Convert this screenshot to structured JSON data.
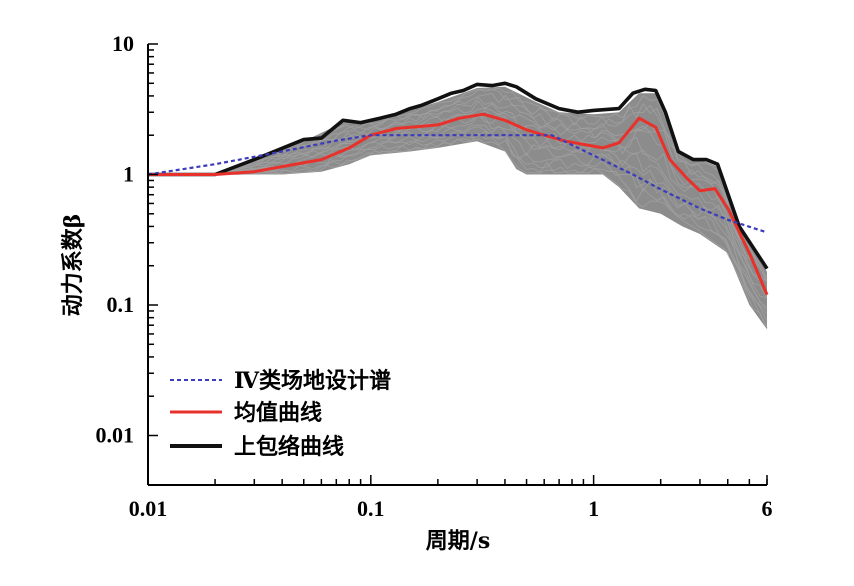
{
  "chart_data": {
    "type": "line",
    "title": "",
    "xlabel": "周期/s",
    "ylabel": "动力系数β",
    "xscale": "log",
    "yscale": "log",
    "xlim": [
      0.01,
      6
    ],
    "ylim": [
      0.005,
      10
    ],
    "xticks": [
      {
        "value": 0.01,
        "label": "0.01"
      },
      {
        "value": 0.1,
        "label": "0.1"
      },
      {
        "value": 1,
        "label": "1"
      },
      {
        "value": 6,
        "label": "6"
      }
    ],
    "yticks": [
      {
        "value": 0.01,
        "label": "0.01"
      },
      {
        "value": 0.1,
        "label": "0.1"
      },
      {
        "value": 1,
        "label": "1"
      },
      {
        "value": 10,
        "label": "10"
      }
    ],
    "grid": false,
    "legend_position": "bottom-left",
    "series": [
      {
        "name": "Ⅳ类场地设计谱",
        "color": "#3b3bbd",
        "style": "dashed",
        "points": [
          [
            0.01,
            1.0
          ],
          [
            0.02,
            1.2
          ],
          [
            0.04,
            1.5
          ],
          [
            0.07,
            1.82
          ],
          [
            0.1,
            2.0
          ],
          [
            0.65,
            2.0
          ],
          [
            1.0,
            1.4
          ],
          [
            1.5,
            1.0
          ],
          [
            2.0,
            0.77
          ],
          [
            3.0,
            0.55
          ],
          [
            4.0,
            0.45
          ],
          [
            6.0,
            0.36
          ]
        ]
      },
      {
        "name": "均值曲线",
        "color": "#e8312b",
        "style": "solid",
        "points": [
          [
            0.01,
            1.0
          ],
          [
            0.02,
            1.0
          ],
          [
            0.03,
            1.05
          ],
          [
            0.04,
            1.15
          ],
          [
            0.06,
            1.3
          ],
          [
            0.08,
            1.6
          ],
          [
            0.1,
            2.0
          ],
          [
            0.13,
            2.25
          ],
          [
            0.2,
            2.4
          ],
          [
            0.25,
            2.7
          ],
          [
            0.32,
            2.9
          ],
          [
            0.4,
            2.6
          ],
          [
            0.5,
            2.2
          ],
          [
            0.6,
            2.0
          ],
          [
            0.75,
            1.8
          ],
          [
            0.9,
            1.7
          ],
          [
            1.1,
            1.6
          ],
          [
            1.3,
            1.75
          ],
          [
            1.6,
            2.7
          ],
          [
            1.9,
            2.3
          ],
          [
            2.2,
            1.3
          ],
          [
            2.6,
            0.95
          ],
          [
            3.0,
            0.75
          ],
          [
            3.5,
            0.78
          ],
          [
            4.0,
            0.55
          ],
          [
            5.0,
            0.25
          ],
          [
            6.0,
            0.12
          ]
        ]
      },
      {
        "name": "上包络曲线",
        "color": "#111111",
        "style": "solid",
        "points": [
          [
            0.01,
            1.0
          ],
          [
            0.02,
            1.0
          ],
          [
            0.03,
            1.3
          ],
          [
            0.05,
            1.85
          ],
          [
            0.06,
            1.9
          ],
          [
            0.075,
            2.6
          ],
          [
            0.09,
            2.5
          ],
          [
            0.11,
            2.7
          ],
          [
            0.13,
            2.9
          ],
          [
            0.15,
            3.2
          ],
          [
            0.17,
            3.4
          ],
          [
            0.2,
            3.8
          ],
          [
            0.23,
            4.2
          ],
          [
            0.26,
            4.4
          ],
          [
            0.3,
            4.9
          ],
          [
            0.35,
            4.8
          ],
          [
            0.4,
            5.0
          ],
          [
            0.45,
            4.7
          ],
          [
            0.55,
            3.8
          ],
          [
            0.7,
            3.2
          ],
          [
            0.85,
            3.0
          ],
          [
            1.0,
            3.1
          ],
          [
            1.3,
            3.2
          ],
          [
            1.5,
            4.2
          ],
          [
            1.7,
            4.5
          ],
          [
            1.9,
            4.4
          ],
          [
            2.1,
            3.0
          ],
          [
            2.4,
            1.5
          ],
          [
            2.8,
            1.3
          ],
          [
            3.2,
            1.3
          ],
          [
            3.6,
            1.2
          ],
          [
            4.5,
            0.4
          ],
          [
            6.0,
            0.19
          ]
        ]
      }
    ],
    "band": {
      "color": "#8c8c8c",
      "description_color": "#a0a0a0",
      "upper": [
        [
          0.01,
          1.0
        ],
        [
          0.02,
          1.0
        ],
        [
          0.03,
          1.3
        ],
        [
          0.05,
          1.8
        ],
        [
          0.075,
          2.5
        ],
        [
          0.1,
          2.6
        ],
        [
          0.15,
          3.1
        ],
        [
          0.2,
          3.6
        ],
        [
          0.3,
          4.6
        ],
        [
          0.4,
          4.7
        ],
        [
          0.55,
          3.6
        ],
        [
          0.7,
          3.0
        ],
        [
          1.0,
          2.9
        ],
        [
          1.3,
          3.0
        ],
        [
          1.6,
          4.2
        ],
        [
          1.9,
          4.2
        ],
        [
          2.1,
          2.9
        ],
        [
          2.4,
          1.45
        ],
        [
          3.2,
          1.25
        ],
        [
          3.6,
          1.15
        ],
        [
          4.5,
          0.38
        ],
        [
          6.0,
          0.18
        ]
      ],
      "lower": [
        [
          0.01,
          1.0
        ],
        [
          0.02,
          1.0
        ],
        [
          0.04,
          1.0
        ],
        [
          0.06,
          1.05
        ],
        [
          0.08,
          1.2
        ],
        [
          0.1,
          1.4
        ],
        [
          0.15,
          1.5
        ],
        [
          0.2,
          1.6
        ],
        [
          0.3,
          1.8
        ],
        [
          0.4,
          1.5
        ],
        [
          0.45,
          1.1
        ],
        [
          0.5,
          1.0
        ],
        [
          0.7,
          1.0
        ],
        [
          0.9,
          1.0
        ],
        [
          1.1,
          1.0
        ],
        [
          1.3,
          0.8
        ],
        [
          1.6,
          0.55
        ],
        [
          2.0,
          0.5
        ],
        [
          2.5,
          0.4
        ],
        [
          3.0,
          0.35
        ],
        [
          4.0,
          0.25
        ],
        [
          5.0,
          0.1
        ],
        [
          6.0,
          0.065
        ]
      ]
    },
    "legend": [
      {
        "label": "Ⅳ类场地设计谱"
      },
      {
        "label": "均值曲线"
      },
      {
        "label": "上包络曲线"
      }
    ]
  }
}
